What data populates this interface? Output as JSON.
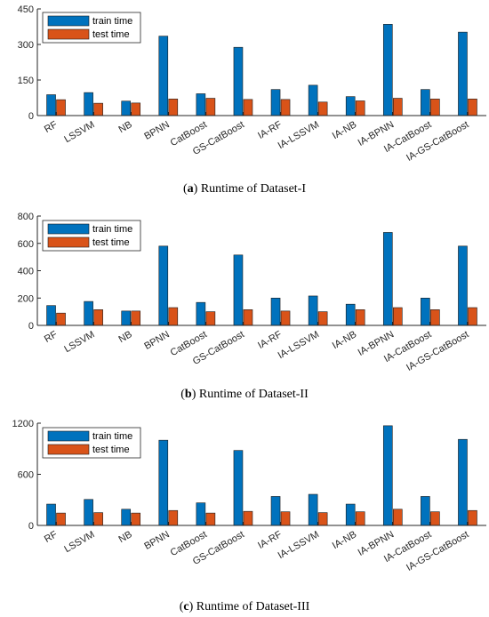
{
  "colors": {
    "train": "#0072BD",
    "test": "#D95319",
    "axis": "#262626"
  },
  "legend": {
    "train": "train time",
    "test": "test time"
  },
  "chart_data": [
    {
      "type": "bar",
      "caption_letter": "a",
      "caption_text": " Runtime of Dataset-I",
      "categories": [
        "RF",
        "LSSVM",
        "NB",
        "BPNN",
        "CatBoost",
        "GS-CatBoost",
        "IA-RF",
        "IA-LSSVM",
        "IA-NB",
        "IA-BPNN",
        "IA-CatBoost",
        "IA-GS-CatBoost"
      ],
      "series": [
        {
          "name": "train time",
          "values": [
            88,
            97,
            61,
            335,
            92,
            288,
            110,
            128,
            80,
            385,
            110,
            352
          ]
        },
        {
          "name": "test time",
          "values": [
            67,
            52,
            53,
            70,
            73,
            68,
            68,
            57,
            62,
            73,
            70,
            70
          ]
        }
      ],
      "ylim": [
        0,
        450
      ],
      "yticks": [
        "0",
        "150",
        "300",
        "450"
      ],
      "legend_position": "top-left"
    },
    {
      "type": "bar",
      "caption_letter": "b",
      "caption_text": " Runtime of Dataset-II",
      "categories": [
        "RF",
        "LSSVM",
        "NB",
        "BPNN",
        "CatBoost",
        "GS-CatBoost",
        "IA-RF",
        "IA-LSSVM",
        "IA-NB",
        "IA-BPNN",
        "IA-CatBoost",
        "IA-GS-CatBoost"
      ],
      "series": [
        {
          "name": "train time",
          "values": [
            145,
            175,
            105,
            580,
            168,
            515,
            200,
            215,
            155,
            680,
            200,
            580
          ]
        },
        {
          "name": "test time",
          "values": [
            90,
            115,
            105,
            130,
            100,
            115,
            105,
            100,
            115,
            130,
            115,
            130
          ]
        }
      ],
      "ylim": [
        0,
        800
      ],
      "yticks": [
        "0",
        "200",
        "400",
        "600",
        "800"
      ],
      "legend_position": "top-left"
    },
    {
      "type": "bar",
      "caption_letter": "c",
      "caption_text": " Runtime of Dataset-III",
      "categories": [
        "RF",
        "LSSVM",
        "NB",
        "BPNN",
        "CatBoost",
        "GS-CatBoost",
        "IA-RF",
        "IA-LSSVM",
        "IA-NB",
        "IA-BPNN",
        "IA-CatBoost",
        "IA-GS-CatBoost"
      ],
      "series": [
        {
          "name": "train time",
          "values": [
            250,
            305,
            190,
            1000,
            265,
            880,
            340,
            365,
            250,
            1170,
            340,
            1010
          ]
        },
        {
          "name": "test time",
          "values": [
            145,
            150,
            145,
            175,
            145,
            165,
            160,
            150,
            160,
            190,
            160,
            175
          ]
        }
      ],
      "ylim": [
        0,
        1200
      ],
      "yticks": [
        "0",
        "600",
        "1200"
      ],
      "legend_position": "top-left"
    }
  ]
}
